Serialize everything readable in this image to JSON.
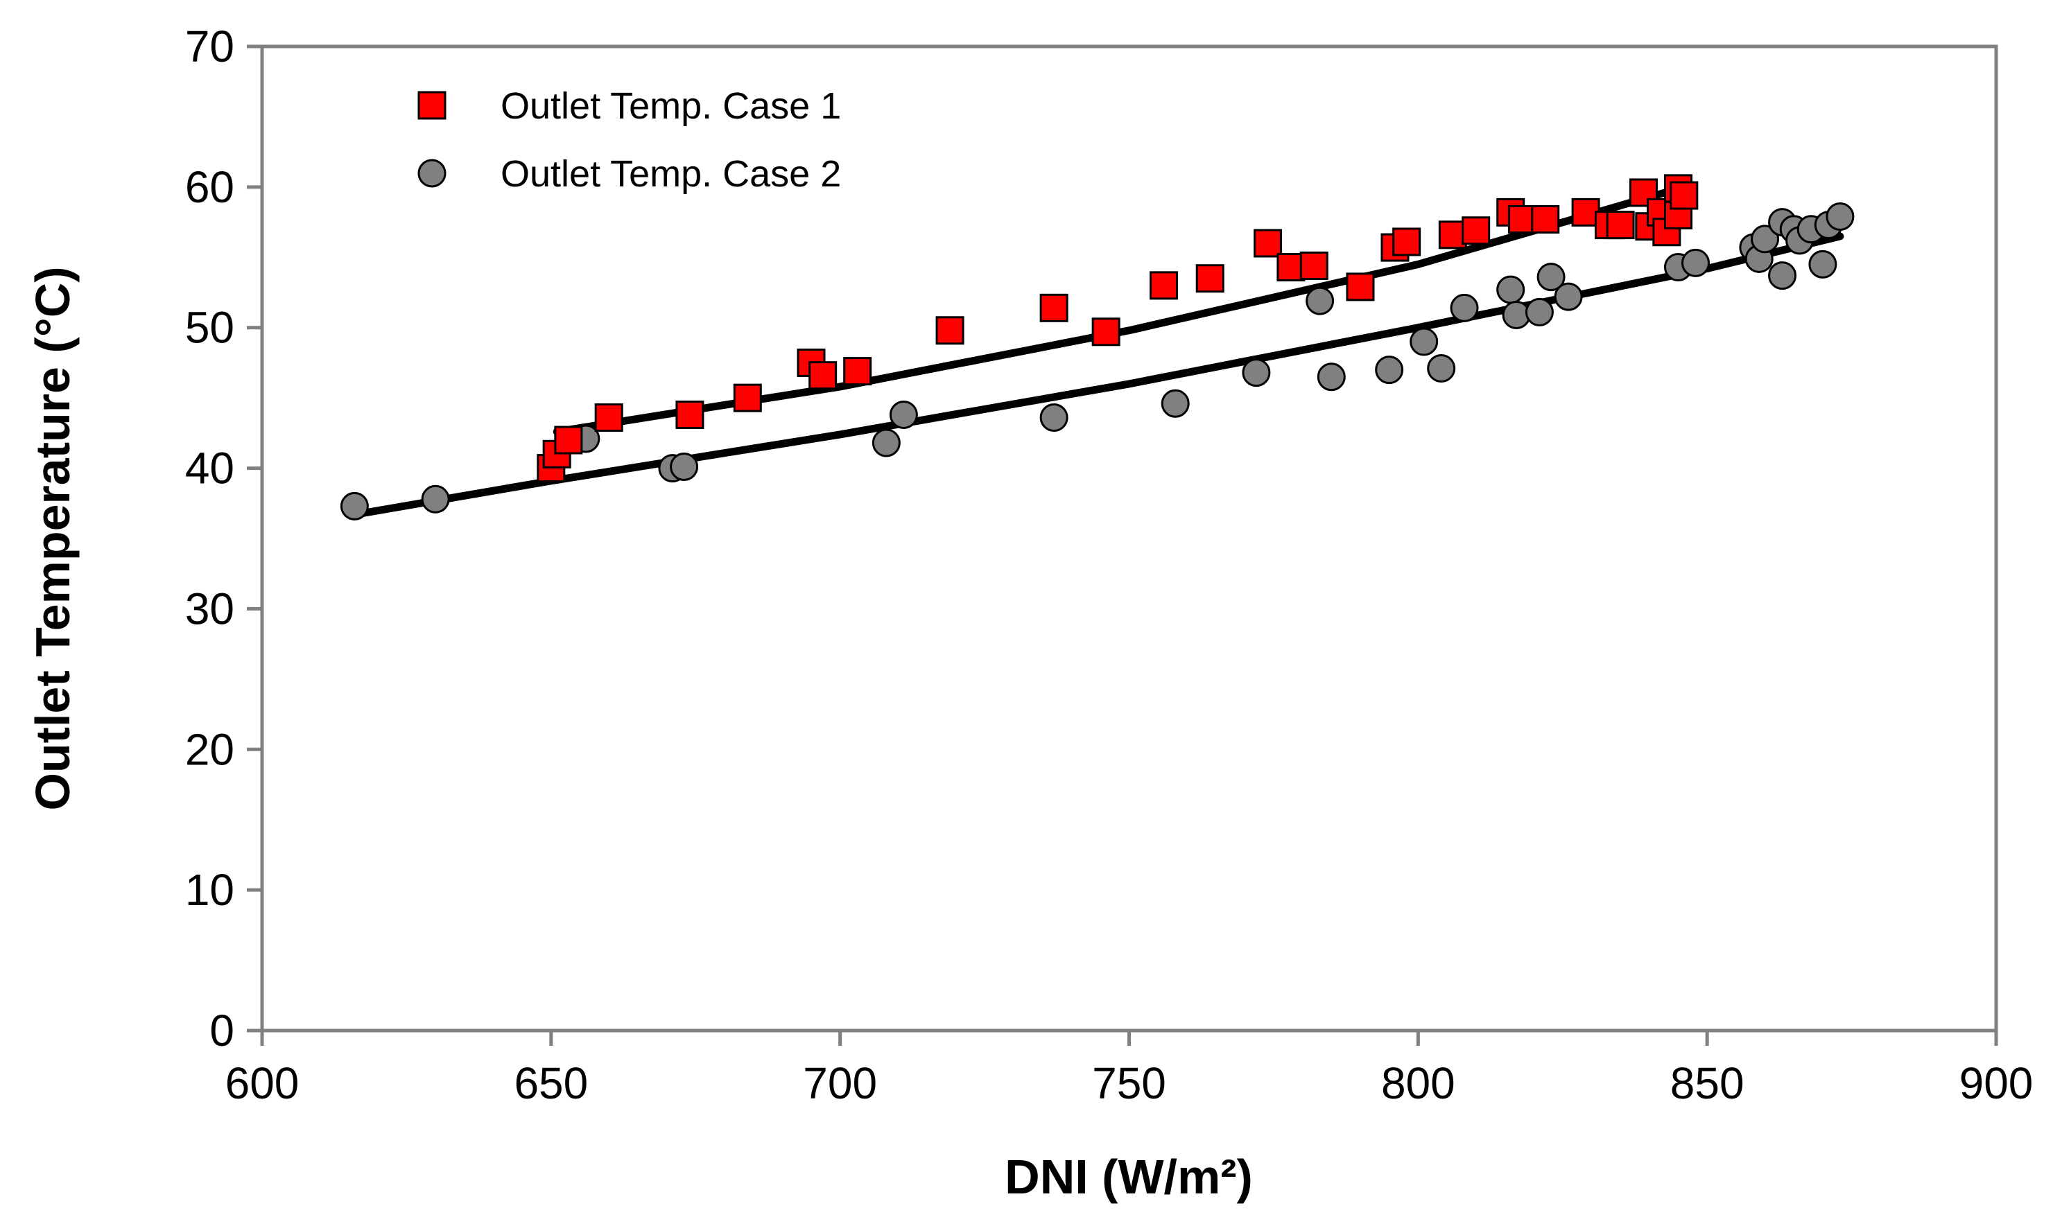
{
  "chart_data": {
    "type": "scatter",
    "title": "",
    "xlabel": "DNI (W/m²)",
    "ylabel": "Outlet Temperature (°C)",
    "xlim": [
      600,
      900
    ],
    "ylim": [
      0,
      70
    ],
    "x_ticks": [
      "600",
      "650",
      "700",
      "750",
      "800",
      "850",
      "900"
    ],
    "y_ticks": [
      "0",
      "10",
      "20",
      "30",
      "40",
      "50",
      "60",
      "70"
    ],
    "grid": false,
    "legend_position": "top-left",
    "series": [
      {
        "name": "Outlet Temp. Case 1",
        "marker": "square",
        "color": "#ff0000",
        "points": [
          [
            650,
            40.0
          ],
          [
            651,
            41.0
          ],
          [
            653,
            42.0
          ],
          [
            660,
            43.6
          ],
          [
            674,
            43.8
          ],
          [
            684,
            45.0
          ],
          [
            695,
            47.5
          ],
          [
            697,
            46.6
          ],
          [
            703,
            46.9
          ],
          [
            719,
            49.8
          ],
          [
            737,
            51.4
          ],
          [
            746,
            49.7
          ],
          [
            756,
            53.0
          ],
          [
            764,
            53.5
          ],
          [
            774,
            56.0
          ],
          [
            778,
            54.3
          ],
          [
            782,
            54.4
          ],
          [
            790,
            52.9
          ],
          [
            796,
            55.7
          ],
          [
            798,
            56.1
          ],
          [
            806,
            56.6
          ],
          [
            810,
            56.9
          ],
          [
            816,
            58.2
          ],
          [
            818,
            57.7
          ],
          [
            822,
            57.7
          ],
          [
            829,
            58.2
          ],
          [
            833,
            57.3
          ],
          [
            835,
            57.3
          ],
          [
            839,
            59.6
          ],
          [
            840,
            57.2
          ],
          [
            842,
            58.2
          ],
          [
            843,
            56.8
          ],
          [
            845,
            58.0
          ],
          [
            845,
            59.9
          ],
          [
            846,
            59.4
          ]
        ],
        "trendline": [
          [
            651,
            42.6
          ],
          [
            700,
            45.8
          ],
          [
            750,
            49.8
          ],
          [
            800,
            54.5
          ],
          [
            846,
            60.0
          ]
        ]
      },
      {
        "name": "Outlet Temp. Case 2",
        "marker": "circle",
        "color": "#808080",
        "points": [
          [
            616,
            37.3
          ],
          [
            630,
            37.8
          ],
          [
            656,
            42.1
          ],
          [
            671,
            40.0
          ],
          [
            673,
            40.1
          ],
          [
            708,
            41.8
          ],
          [
            711,
            43.8
          ],
          [
            737,
            43.6
          ],
          [
            758,
            44.6
          ],
          [
            772,
            46.8
          ],
          [
            783,
            51.9
          ],
          [
            785,
            46.5
          ],
          [
            795,
            47.0
          ],
          [
            801,
            49.0
          ],
          [
            804,
            47.1
          ],
          [
            808,
            51.4
          ],
          [
            816,
            52.7
          ],
          [
            817,
            50.9
          ],
          [
            821,
            51.1
          ],
          [
            823,
            53.6
          ],
          [
            826,
            52.2
          ],
          [
            845,
            54.3
          ],
          [
            848,
            54.6
          ],
          [
            858,
            55.7
          ],
          [
            859,
            54.9
          ],
          [
            860,
            56.3
          ],
          [
            863,
            57.5
          ],
          [
            863,
            53.7
          ],
          [
            865,
            57.0
          ],
          [
            866,
            56.2
          ],
          [
            868,
            57.0
          ],
          [
            870,
            54.5
          ],
          [
            871,
            57.3
          ],
          [
            873,
            57.9
          ]
        ],
        "trendline": [
          [
            616,
            36.7
          ],
          [
            650,
            39.1
          ],
          [
            700,
            42.4
          ],
          [
            750,
            46.0
          ],
          [
            800,
            50.0
          ],
          [
            850,
            54.2
          ],
          [
            873,
            56.5
          ]
        ]
      }
    ]
  }
}
